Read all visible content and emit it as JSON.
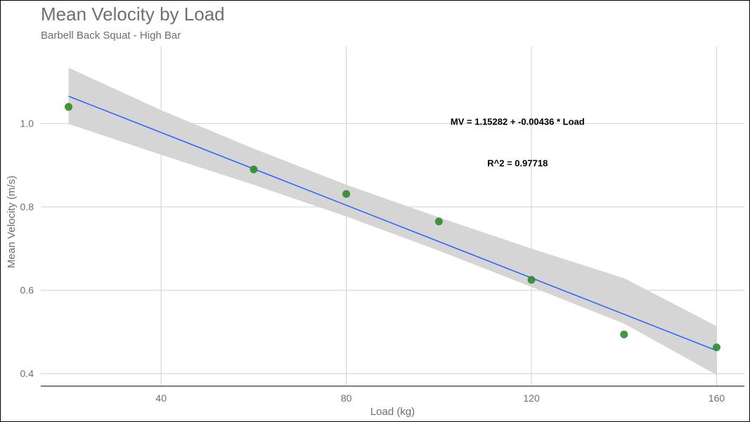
{
  "chart_data": {
    "type": "scatter",
    "title": "Mean Velocity by Load",
    "subtitle": "Barbell Back Squat - High Bar",
    "xlabel": "Load (kg)",
    "ylabel": "Mean Velocity (m/s)",
    "xlim": [
      14,
      166
    ],
    "ylim": [
      0.37,
      1.185
    ],
    "x_ticks": [
      40,
      80,
      120,
      160
    ],
    "y_ticks": [
      0.4,
      0.6,
      0.8,
      1.0
    ],
    "x_tick_labels": [
      "40",
      "80",
      "120",
      "160"
    ],
    "y_tick_labels": [
      "0.4",
      "0.6",
      "0.8",
      "1.0"
    ],
    "grid": true,
    "points": {
      "x": [
        20,
        60,
        80,
        100,
        120,
        140,
        160
      ],
      "y": [
        1.04,
        0.89,
        0.831,
        0.765,
        0.625,
        0.494,
        0.463
      ],
      "color": "#2e8b2e"
    },
    "fit": {
      "intercept": 1.15282,
      "slope": -0.00436,
      "x_range": [
        20,
        160
      ],
      "color": "#3366ff",
      "band_color": "#d3d3d3",
      "band": {
        "x": [
          20,
          40,
          60,
          80,
          100,
          120,
          140,
          160
        ],
        "lower": [
          0.999,
          0.925,
          0.853,
          0.777,
          0.695,
          0.608,
          0.52,
          0.397
        ],
        "upper": [
          1.134,
          1.032,
          0.94,
          0.853,
          0.775,
          0.7,
          0.629,
          0.514
        ]
      }
    },
    "annotations": [
      {
        "text": "MV = 1.15282 + -0.00436 * Load",
        "x": 117,
        "y": 0.997
      },
      {
        "text": "R^2 = 0.97718",
        "x": 117,
        "y": 0.897
      }
    ]
  }
}
